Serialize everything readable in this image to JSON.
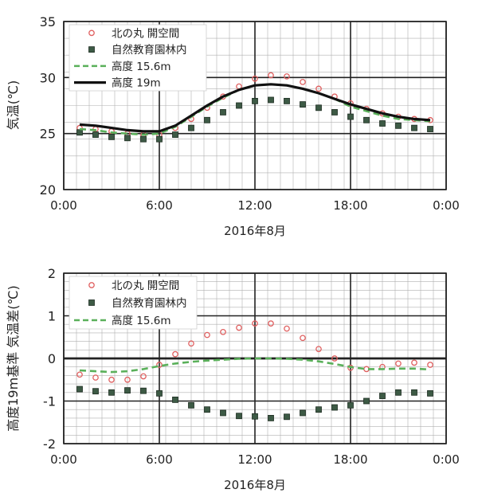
{
  "chart_data": [
    {
      "type": "scatter",
      "ylabel": "気温(℃)",
      "xlabel": "2016年8月",
      "x_ticks": [
        "0:00",
        "6:00",
        "12:00",
        "18:00",
        "0:00"
      ],
      "y_ticks": [
        "20",
        "25",
        "30",
        "35"
      ],
      "xlim": [
        0,
        24
      ],
      "ylim": [
        20,
        35
      ],
      "grid": true,
      "legend_position": "top-left",
      "series": [
        {
          "name": "北の丸 開空間",
          "marker": "open-circle",
          "color": "#e06060",
          "x": [
            1,
            2,
            3,
            4,
            5,
            6,
            7,
            8,
            9,
            10,
            11,
            12,
            13,
            14,
            15,
            16,
            17,
            18,
            19,
            20,
            21,
            22,
            23
          ],
          "y": [
            25.5,
            25.4,
            25.2,
            25.0,
            24.9,
            24.9,
            25.5,
            26.3,
            27.3,
            28.3,
            29.2,
            29.9,
            30.2,
            30.1,
            29.6,
            29.0,
            28.3,
            27.7,
            27.2,
            26.8,
            26.5,
            26.3,
            26.2
          ]
        },
        {
          "name": "自然教育園林内",
          "marker": "square",
          "color": "#3d5a45",
          "x": [
            1,
            2,
            3,
            4,
            5,
            6,
            7,
            8,
            9,
            10,
            11,
            12,
            13,
            14,
            15,
            16,
            17,
            18,
            19,
            20,
            21,
            22,
            23
          ],
          "y": [
            25.1,
            24.9,
            24.7,
            24.6,
            24.5,
            24.5,
            24.9,
            25.5,
            26.2,
            26.9,
            27.5,
            27.9,
            28.0,
            27.9,
            27.6,
            27.3,
            26.9,
            26.5,
            26.2,
            25.9,
            25.7,
            25.5,
            25.4
          ]
        },
        {
          "name": "高度 15.6m",
          "line": "dashed",
          "color": "#5ab05a",
          "x": [
            1,
            2,
            3,
            4,
            5,
            6,
            7,
            8,
            9,
            10,
            11,
            12,
            13,
            14,
            15,
            16,
            17,
            18,
            19,
            20,
            21,
            22,
            23
          ],
          "y": [
            25.4,
            25.3,
            25.1,
            25.0,
            24.9,
            25.0,
            25.6,
            26.5,
            27.4,
            28.2,
            28.9,
            29.3,
            29.4,
            29.3,
            29.0,
            28.6,
            28.1,
            27.4,
            27.0,
            26.6,
            26.3,
            26.2,
            26.1
          ]
        },
        {
          "name": "高度 19m",
          "line": "solid",
          "color": "#111111",
          "x": [
            1,
            2,
            3,
            4,
            5,
            6,
            7,
            8,
            9,
            10,
            11,
            12,
            13,
            14,
            15,
            16,
            17,
            18,
            19,
            20,
            21,
            22,
            23
          ],
          "y": [
            25.8,
            25.7,
            25.5,
            25.3,
            25.2,
            25.2,
            25.7,
            26.6,
            27.5,
            28.3,
            28.9,
            29.3,
            29.4,
            29.3,
            29.0,
            28.6,
            28.1,
            27.6,
            27.2,
            26.8,
            26.5,
            26.3,
            26.2
          ]
        }
      ]
    },
    {
      "type": "scatter",
      "ylabel": "高度19m基準 気温差(℃)",
      "xlabel": "2016年8月",
      "x_ticks": [
        "0:00",
        "6:00",
        "12:00",
        "18:00",
        "0:00"
      ],
      "y_ticks": [
        "-2",
        "-1",
        "0",
        "1",
        "2"
      ],
      "xlim": [
        0,
        24
      ],
      "ylim": [
        -2,
        2
      ],
      "grid": true,
      "legend_position": "top-left",
      "series": [
        {
          "name": "北の丸 開空間",
          "marker": "open-circle",
          "color": "#e06060",
          "x": [
            1,
            2,
            3,
            4,
            5,
            6,
            7,
            8,
            9,
            10,
            11,
            12,
            13,
            14,
            15,
            16,
            17,
            18,
            19,
            20,
            21,
            22,
            23
          ],
          "y": [
            -0.38,
            -0.45,
            -0.5,
            -0.5,
            -0.42,
            -0.15,
            0.1,
            0.35,
            0.55,
            0.62,
            0.72,
            0.82,
            0.82,
            0.7,
            0.48,
            0.22,
            0.0,
            -0.22,
            -0.25,
            -0.2,
            -0.12,
            -0.1,
            -0.15
          ]
        },
        {
          "name": "自然教育園林内",
          "marker": "square",
          "color": "#3d5a45",
          "x": [
            1,
            2,
            3,
            4,
            5,
            6,
            7,
            8,
            9,
            10,
            11,
            12,
            13,
            14,
            15,
            16,
            17,
            18,
            19,
            20,
            21,
            22,
            23
          ],
          "y": [
            -0.72,
            -0.77,
            -0.8,
            -0.75,
            -0.76,
            -0.82,
            -0.97,
            -1.1,
            -1.2,
            -1.28,
            -1.35,
            -1.36,
            -1.4,
            -1.37,
            -1.28,
            -1.2,
            -1.15,
            -1.1,
            -1.0,
            -0.88,
            -0.8,
            -0.8,
            -0.82
          ]
        },
        {
          "name": "高度 15.6m",
          "line": "dashed",
          "color": "#5ab05a",
          "x": [
            1,
            2,
            3,
            4,
            5,
            6,
            7,
            8,
            9,
            10,
            11,
            12,
            13,
            14,
            15,
            16,
            17,
            18,
            19,
            20,
            21,
            22,
            23
          ],
          "y": [
            -0.28,
            -0.3,
            -0.32,
            -0.3,
            -0.25,
            -0.18,
            -0.12,
            -0.08,
            -0.05,
            -0.03,
            -0.01,
            0.0,
            0.0,
            -0.01,
            -0.03,
            -0.07,
            -0.13,
            -0.2,
            -0.25,
            -0.25,
            -0.24,
            -0.24,
            -0.26
          ]
        }
      ]
    }
  ]
}
